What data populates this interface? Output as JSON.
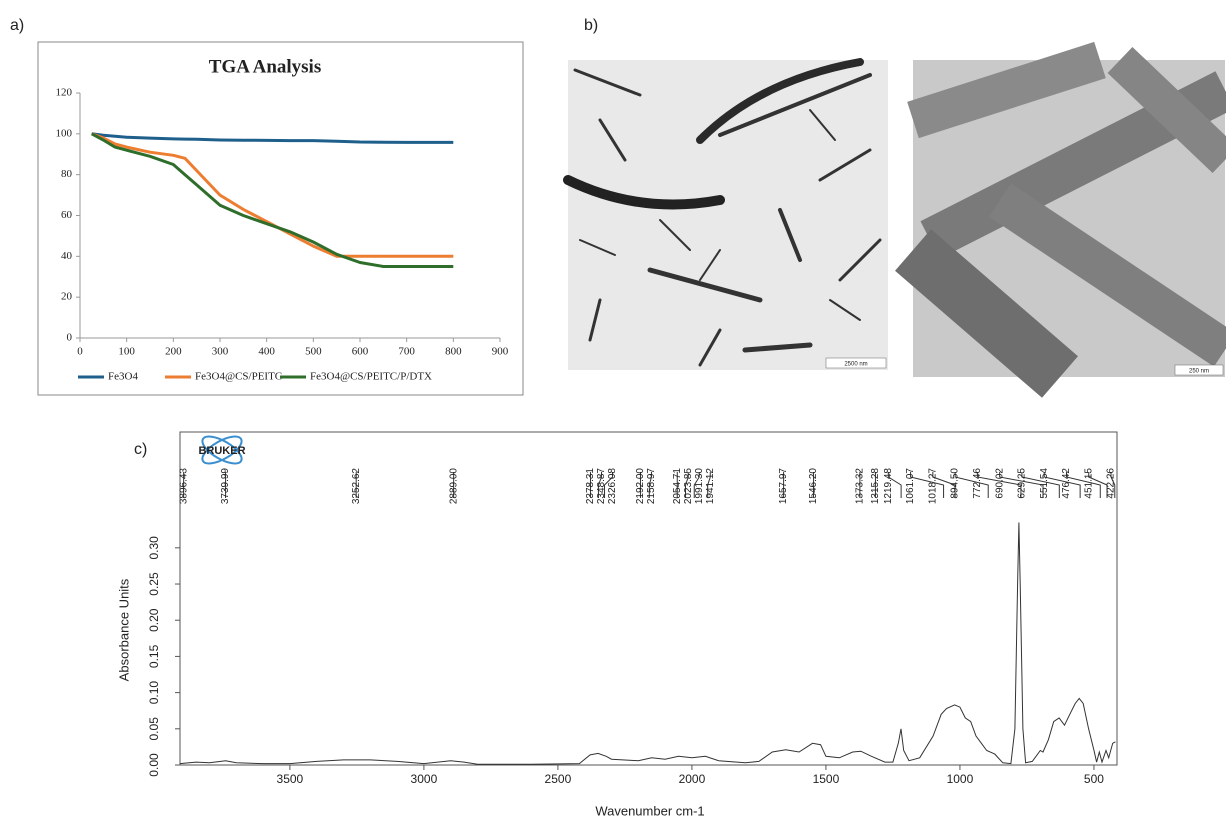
{
  "panel_labels": [
    "a)",
    "b)",
    "c)"
  ],
  "images": [
    {
      "scale_bar": "2500 nm"
    },
    {
      "scale_bar": "250 nm"
    }
  ],
  "chart_data": [
    {
      "type": "line",
      "title": "TGA Analysis",
      "x": [
        25,
        50,
        75,
        100,
        150,
        200,
        225,
        250,
        300,
        350,
        400,
        450,
        500,
        550,
        600,
        650,
        700,
        800
      ],
      "series": [
        {
          "name": "Fe3O4",
          "color": "#1f5f8b",
          "values": [
            100,
            99.3,
            98.8,
            98.3,
            97.9,
            97.5,
            97.4,
            97.3,
            97,
            96.9,
            96.8,
            96.7,
            96.7,
            96.4,
            96,
            95.9,
            95.8,
            95.8
          ]
        },
        {
          "name": "Fe3O4@CS/PEITC",
          "color": "#ed7d31",
          "values": [
            100,
            98,
            95,
            93.5,
            91,
            89.5,
            88,
            82,
            70,
            63,
            57,
            51,
            45,
            40,
            40,
            40,
            40,
            40
          ]
        },
        {
          "name": "Fe3O4@CS/PEITC/P/DTX",
          "color": "#2e6e2a",
          "values": [
            100,
            97,
            93.5,
            92,
            89,
            85,
            80,
            75,
            65,
            60,
            56,
            52,
            47,
            41,
            37,
            35,
            35,
            35
          ]
        }
      ],
      "xlim": [
        0,
        900
      ],
      "xticks": [
        0,
        100,
        200,
        300,
        400,
        500,
        600,
        700,
        800,
        900
      ],
      "ylim": [
        0,
        120
      ],
      "yticks": [
        0,
        20,
        40,
        60,
        80,
        100,
        120
      ],
      "legend": "bottom"
    },
    {
      "type": "line",
      "logo": "BRUKER",
      "xlabel": "Wavenumber cm-1",
      "ylabel": "Absorbance Units",
      "color": "#333333",
      "x": [
        3910,
        3850,
        3800,
        3740,
        3700,
        3600,
        3500,
        3400,
        3300,
        3200,
        3100,
        3000,
        2900,
        2850,
        2800,
        2600,
        2420,
        2380,
        2350,
        2320,
        2300,
        2200,
        2150,
        2100,
        2050,
        2000,
        1950,
        1900,
        1800,
        1750,
        1700,
        1650,
        1600,
        1550,
        1520,
        1500,
        1450,
        1400,
        1370,
        1330,
        1280,
        1250,
        1230,
        1220,
        1210,
        1190,
        1150,
        1100,
        1070,
        1050,
        1020,
        1000,
        980,
        960,
        940,
        920,
        900,
        870,
        840,
        810,
        795,
        785,
        780,
        775,
        765,
        755,
        730,
        700,
        690,
        670,
        650,
        630,
        610,
        590,
        570,
        555,
        540,
        520,
        500,
        490,
        480,
        470,
        455,
        445,
        430,
        420
      ],
      "values": [
        0.002,
        0.004,
        0.003,
        0.006,
        0.003,
        0.002,
        0.002,
        0.005,
        0.007,
        0.007,
        0.005,
        0.002,
        0.006,
        0.004,
        0.001,
        0.001,
        0.002,
        0.014,
        0.016,
        0.012,
        0.008,
        0.006,
        0.01,
        0.008,
        0.012,
        0.01,
        0.012,
        0.006,
        0.003,
        0.005,
        0.018,
        0.021,
        0.018,
        0.03,
        0.028,
        0.012,
        0.01,
        0.018,
        0.019,
        0.012,
        0.004,
        0.004,
        0.03,
        0.05,
        0.02,
        0.006,
        0.01,
        0.04,
        0.07,
        0.078,
        0.083,
        0.08,
        0.065,
        0.06,
        0.04,
        0.03,
        0.02,
        0.015,
        0.003,
        0.002,
        0.05,
        0.25,
        0.335,
        0.25,
        0.05,
        0.003,
        0.005,
        0.02,
        0.018,
        0.035,
        0.06,
        0.065,
        0.055,
        0.07,
        0.085,
        0.092,
        0.085,
        0.05,
        0.02,
        0.004,
        0.018,
        0.004,
        0.02,
        0.01,
        0.03,
        0.032
      ],
      "xlim": [
        3910,
        414
      ],
      "xticks": [
        3500,
        3000,
        2500,
        2000,
        1500,
        1000,
        500
      ],
      "ylim": [
        0,
        0.46
      ],
      "yticks": [
        {
          "value": 0,
          "label": "0.00"
        },
        {
          "value": 0.05,
          "label": "0.05"
        },
        {
          "value": 0.1,
          "label": "0.10"
        },
        {
          "value": 0.15,
          "label": "0.15"
        },
        {
          "value": 0.2,
          "label": "0.20"
        },
        {
          "value": 0.25,
          "label": "0.25"
        },
        {
          "value": 0.3,
          "label": "0.30"
        }
      ],
      "peaks": [
        {
          "value": 3896.43,
          "label": "3896.43"
        },
        {
          "value": 3739.99,
          "label": "3739.99"
        },
        {
          "value": 3252.62,
          "label": "3252.62"
        },
        {
          "value": 2889,
          "label": "2889.00"
        },
        {
          "value": 2378.31,
          "label": "2378.31"
        },
        {
          "value": 2348.87,
          "label": "2348.87"
        },
        {
          "value": 2326.08,
          "label": "2326.08"
        },
        {
          "value": 2192,
          "label": "2192.00"
        },
        {
          "value": 2158.97,
          "label": "2158.97"
        },
        {
          "value": 2054.71,
          "label": "2054.71"
        },
        {
          "value": 2023.85,
          "label": "2023.85"
        },
        {
          "value": 1991.3,
          "label": "1991.30"
        },
        {
          "value": 1941.12,
          "label": "1941.12"
        },
        {
          "value": 1657.97,
          "label": "1657.97"
        },
        {
          "value": 1546.2,
          "label": "1546.20"
        },
        {
          "value": 1373.32,
          "label": "1373.32"
        },
        {
          "value": 1315.28,
          "label": "1315.28"
        },
        {
          "value": 1219.48,
          "label": "1219.48"
        },
        {
          "value": 1061.07,
          "label": "1061.07"
        },
        {
          "value": 1018.27,
          "label": "1018.27"
        },
        {
          "value": 894.5,
          "label": "894.50"
        },
        {
          "value": 772.46,
          "label": "772.46"
        },
        {
          "value": 690.02,
          "label": "690.02"
        },
        {
          "value": 629.25,
          "label": "629.25"
        },
        {
          "value": 551.54,
          "label": "551.54"
        },
        {
          "value": 476.42,
          "label": "476.42"
        },
        {
          "value": 451.15,
          "label": "451.15"
        },
        {
          "value": 422.26,
          "label": "422.26"
        }
      ]
    }
  ]
}
